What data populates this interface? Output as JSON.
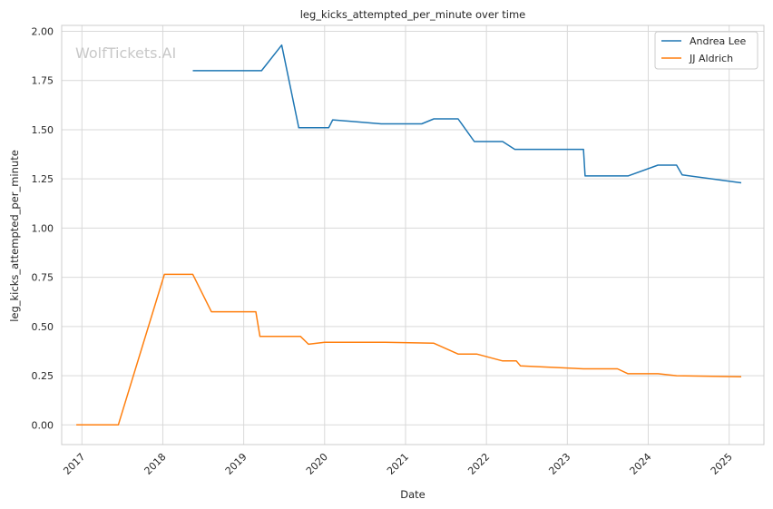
{
  "chart_data": {
    "type": "line",
    "title": "leg_kicks_attempted_per_minute over time",
    "xlabel": "Date",
    "ylabel": "leg_kicks_attempted_per_minute",
    "watermark": "WolfTickets.AI",
    "xlim": [
      2016.75,
      2025.43
    ],
    "ylim": [
      -0.1,
      2.03
    ],
    "yticks": [
      0.0,
      0.25,
      0.5,
      0.75,
      1.0,
      1.25,
      1.5,
      1.75,
      2.0
    ],
    "ytick_labels": [
      "0.00",
      "0.25",
      "0.50",
      "0.75",
      "1.00",
      "1.25",
      "1.50",
      "1.75",
      "2.00"
    ],
    "xticks": [
      2017,
      2018,
      2019,
      2020,
      2021,
      2022,
      2023,
      2024,
      2025
    ],
    "xtick_labels": [
      "2017",
      "2018",
      "2019",
      "2020",
      "2021",
      "2022",
      "2023",
      "2024",
      "2025"
    ],
    "grid": true,
    "legend_position": "top-right",
    "series": [
      {
        "name": "Andrea Lee",
        "color": "#1f77b4",
        "x": [
          2018.37,
          2019.22,
          2019.47,
          2019.68,
          2020.05,
          2020.1,
          2020.7,
          2021.2,
          2021.35,
          2021.65,
          2021.85,
          2022.2,
          2022.35,
          2023.2,
          2023.22,
          2023.75,
          2024.12,
          2024.35,
          2024.42,
          2025.15
        ],
        "y": [
          1.8,
          1.8,
          1.93,
          1.51,
          1.51,
          1.55,
          1.53,
          1.53,
          1.555,
          1.555,
          1.44,
          1.44,
          1.4,
          1.4,
          1.265,
          1.265,
          1.32,
          1.32,
          1.27,
          1.23
        ]
      },
      {
        "name": "JJ Aldrich",
        "color": "#ff7f0e",
        "x": [
          2016.93,
          2017.45,
          2018.02,
          2018.37,
          2018.6,
          2019.15,
          2019.2,
          2019.7,
          2019.8,
          2020.0,
          2020.75,
          2021.35,
          2021.65,
          2021.88,
          2022.2,
          2022.37,
          2022.42,
          2023.2,
          2023.62,
          2023.75,
          2024.12,
          2024.35,
          2025.15
        ],
        "y": [
          0.0,
          0.0,
          0.765,
          0.765,
          0.575,
          0.575,
          0.45,
          0.45,
          0.41,
          0.42,
          0.42,
          0.415,
          0.36,
          0.36,
          0.325,
          0.325,
          0.3,
          0.285,
          0.285,
          0.26,
          0.26,
          0.25,
          0.245
        ]
      }
    ]
  }
}
